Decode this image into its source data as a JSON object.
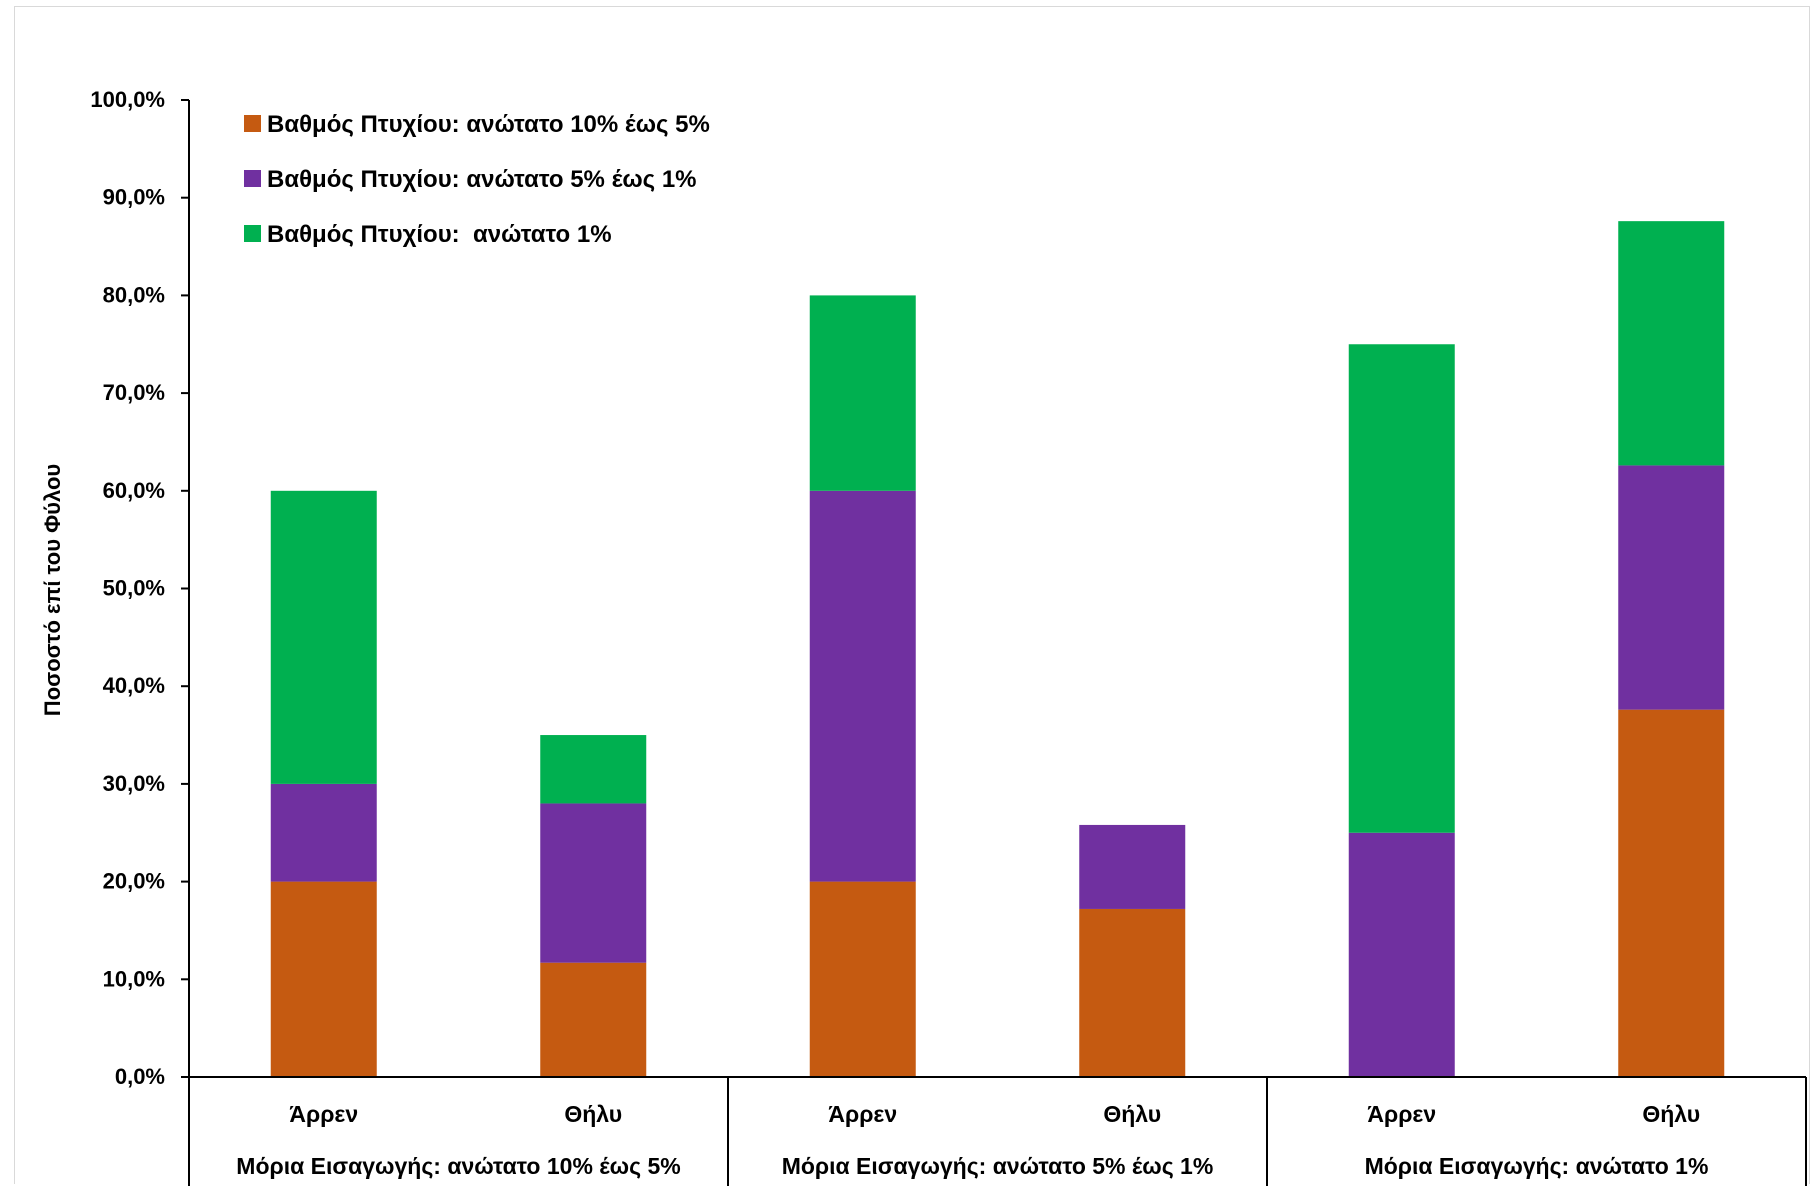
{
  "chart_data": {
    "type": "bar",
    "stacked": true,
    "ylabel": "Ποσοστό επί του Φύλου",
    "ylim": [
      0,
      100
    ],
    "yticks": [
      "0,0%",
      "10,0%",
      "20,0%",
      "30,0%",
      "40,0%",
      "50,0%",
      "60,0%",
      "70,0%",
      "80,0%",
      "90,0%",
      "100,0%"
    ],
    "categories": [
      "Άρρεν",
      "Θήλυ",
      "Άρρεν",
      "Θήλυ",
      "Άρρεν",
      "Θήλυ"
    ],
    "groups": [
      {
        "label": "Μόρια Εισαγωγής: ανώτατο 10% έως 5%",
        "span": [
          0,
          1
        ]
      },
      {
        "label": "Μόρια Εισαγωγής: ανώτατο 5% έως 1%",
        "span": [
          2,
          3
        ]
      },
      {
        "label": "Μόρια Εισαγωγής: ανώτατο 1%",
        "span": [
          4,
          5
        ]
      }
    ],
    "series": [
      {
        "name": "Βαθμός Πτυχίου: ανώτατο 10% έως 5%",
        "color": "#c55a11",
        "values": [
          20.0,
          11.7,
          20.0,
          17.2,
          0.0,
          37.6
        ]
      },
      {
        "name": "Βαθμός Πτυχίου: ανώτατο 5% έως 1%",
        "color": "#7030a0",
        "values": [
          10.0,
          16.3,
          40.0,
          8.6,
          25.0,
          25.0
        ]
      },
      {
        "name": "Βαθμός Πτυχίου:  ανώτατο 1%",
        "color": "#00b050",
        "values": [
          30.0,
          7.0,
          20.0,
          0.0,
          50.0,
          25.0
        ]
      }
    ],
    "legend": "top-left",
    "grid": false
  }
}
